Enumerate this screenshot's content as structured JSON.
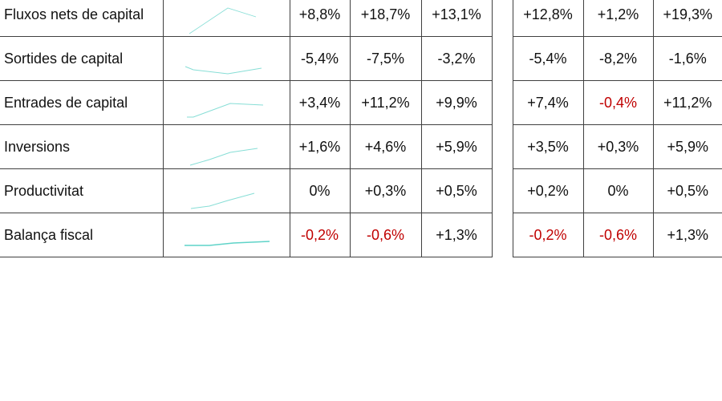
{
  "colors": {
    "sparkline": "#5fd3c8",
    "negative": "#c00000"
  },
  "rows": [
    {
      "label": "Fluxos nets de capital",
      "values": [
        "+8,8%",
        "+18,7%",
        "+13,1%",
        "+12,8%",
        "+1,2%",
        "+19,3%"
      ]
    },
    {
      "label": "Sortides de capital",
      "values": [
        "-5,4%",
        "-7,5%",
        "-3,2%",
        "-5,4%",
        "-8,2%",
        "-1,6%"
      ]
    },
    {
      "label": "Entrades de capital",
      "values": [
        "+3,4%",
        "+11,2%",
        "+9,9%",
        "+7,4%",
        "-0,4%",
        "+11,2%"
      ]
    },
    {
      "label": "Inversions",
      "values": [
        "+1,6%",
        "+4,6%",
        "+5,9%",
        "+3,5%",
        "+0,3%",
        "+5,9%"
      ]
    },
    {
      "label": "Productivitat",
      "values": [
        "0%",
        "+0,3%",
        "+0,5%",
        "+0,2%",
        "0%",
        "+0,5%"
      ]
    },
    {
      "label": "Balança fiscal",
      "values": [
        "-0,2%",
        "-0,6%",
        "+1,3%",
        "-0,2%",
        "-0,6%",
        "+1,3%"
      ]
    }
  ],
  "negative_cells": [
    [
      2,
      4
    ],
    [
      5,
      0
    ],
    [
      5,
      1
    ],
    [
      5,
      3
    ],
    [
      5,
      4
    ]
  ]
}
